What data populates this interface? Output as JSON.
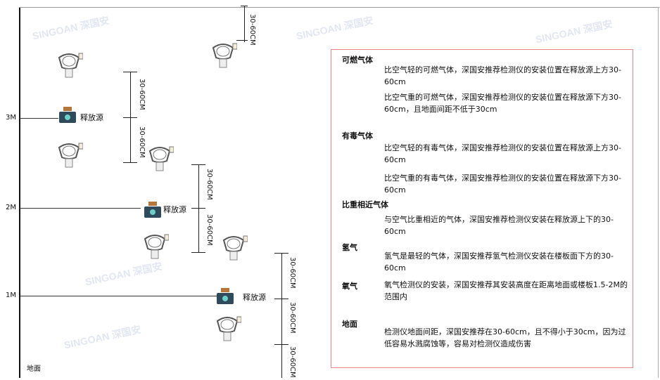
{
  "watermark": "SINGOAN 深国安",
  "levels": [
    "3M",
    "2M",
    "1M"
  ],
  "floor_label": "地面",
  "source_label": "释放源",
  "dimension_label": "30-60CM",
  "colors": {
    "box_border": "#e7878a",
    "watermark": "#c9d2e8",
    "source_body": "#2f4a5a",
    "source_cap": "#b5763a"
  },
  "notes": {
    "combustible": {
      "title": "可燃气体",
      "lighter": "比空气轻的可燃气体，深国安推荐检测仪的安装位置在释放源上方30-60cm",
      "heavier": "比空气重的可燃气体，深国安推荐检测仪的安装位置在释放源下方30-60cm，且地面间距不低于30cm"
    },
    "toxic": {
      "title": "有毒气体",
      "lighter": "比空气轻的有毒气体，深国安推荐检测仪的安装位置在释放源上方30-60cm",
      "heavier": "比空气重的有毒气体，深国安推荐检测仪的安装位置在释放源下方30-60cm"
    },
    "similar": {
      "title": "比重相近气体",
      "text": "与空气比重相近的气体，深国安推荐检测仪安装在释放源上下的30-60cm"
    },
    "hydrogen": {
      "title": "氢气",
      "text": "氢气是最轻的气体，深国安推荐氢气检测仪安装在楼板面下方的30-60cm"
    },
    "oxygen": {
      "title": "氧气",
      "text": "氧气检测仪的安装，深国安推荐其安装高度在距离地面或楼板1.5-2M的范围内"
    },
    "ground": {
      "title": "地面",
      "text": "检测仪地面间距，深国安推荐在30-60cm，且不得小于30cm，因为过低容易水溅腐蚀等，容易对检测仪造成伤害"
    }
  }
}
